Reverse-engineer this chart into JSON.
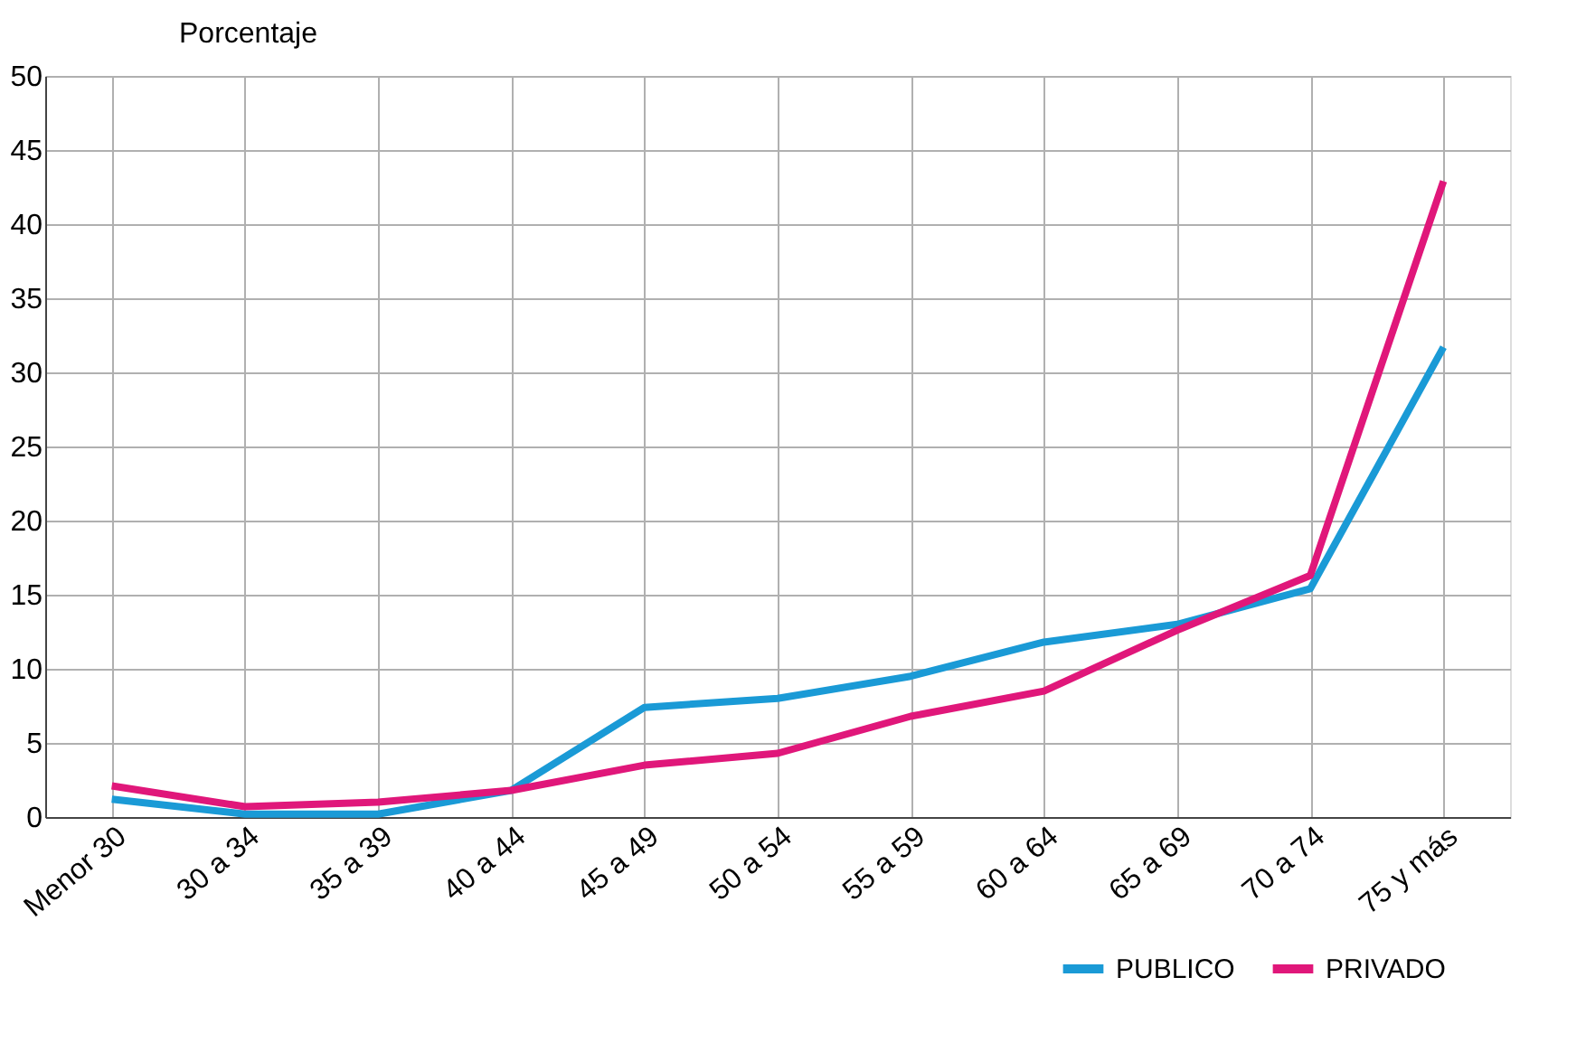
{
  "chart_data": {
    "type": "line",
    "ylabel": "Porcentaje",
    "categories": [
      "Menor 30",
      "30 a 34",
      "35 a 39",
      "40 a 44",
      "45 a 49",
      "50 a 54",
      "55 a 59",
      "60 a 64",
      "65 a 69",
      "70 a 74",
      "75 y más"
    ],
    "series": [
      {
        "name": "PUBLICO",
        "color": "#1a9ad6",
        "values": [
          1.2,
          0.2,
          0.2,
          1.8,
          7.4,
          8.0,
          9.5,
          11.8,
          13.0,
          15.4,
          31.7
        ]
      },
      {
        "name": "PRIVADO",
        "color": "#e0177a",
        "values": [
          2.1,
          0.7,
          1.0,
          1.8,
          3.5,
          4.3,
          6.8,
          8.5,
          12.6,
          16.3,
          42.9
        ]
      }
    ],
    "ylim": [
      0,
      50
    ],
    "yticks": [
      0,
      5,
      10,
      15,
      20,
      25,
      30,
      35,
      40,
      45,
      50
    ],
    "grid": true,
    "legend": "bottom right",
    "marker": "none",
    "line_style": "solid"
  }
}
